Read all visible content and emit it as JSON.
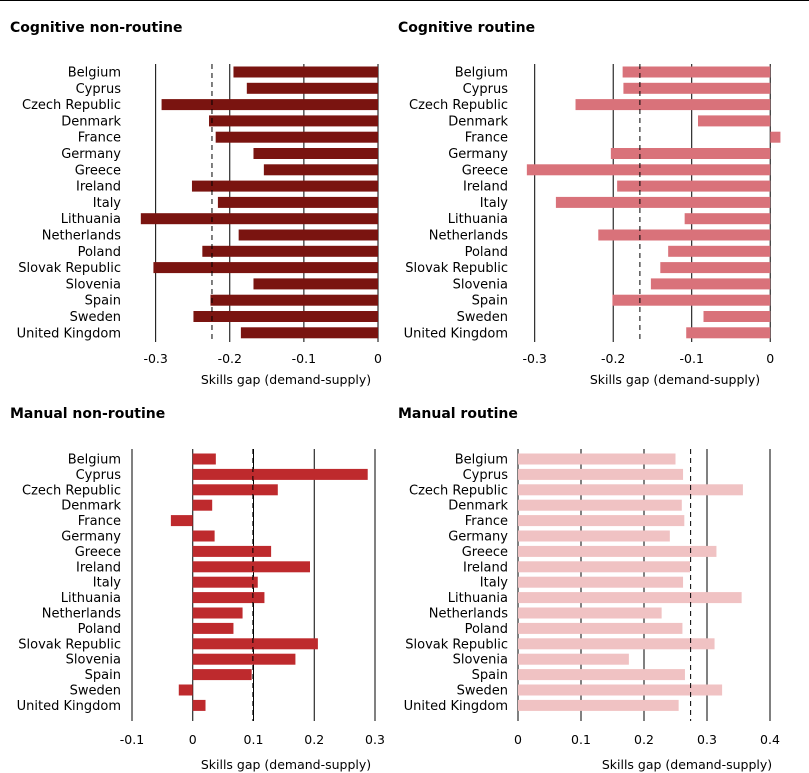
{
  "chart_data": [
    {
      "type": "bar",
      "orientation": "horizontal",
      "title": "Cognitive non-routine",
      "xlabel": "Skills gap (demand-supply)",
      "color": "#7a1410",
      "categories": [
        "Belgium",
        "Cyprus",
        "Czech Republic",
        "Denmark",
        "France",
        "Germany",
        "Greece",
        "Ireland",
        "Italy",
        "Lithuania",
        "Netherlands",
        "Poland",
        "Slovak Republic",
        "Slovenia",
        "Spain",
        "Sweden",
        "United Kingdom"
      ],
      "values": [
        -0.195,
        -0.177,
        -0.292,
        -0.228,
        -0.219,
        -0.168,
        -0.154,
        -0.251,
        -0.216,
        -0.32,
        -0.188,
        -0.237,
        -0.303,
        -0.168,
        -0.226,
        -0.249,
        -0.185
      ],
      "xlim": [
        -0.34,
        0.0
      ],
      "xticks": [
        "-0.3",
        "-0.2",
        "-0.1",
        "0"
      ],
      "xtick_values": [
        -0.3,
        -0.2,
        -0.1,
        0
      ],
      "reference_line": -0.224
    },
    {
      "type": "bar",
      "orientation": "horizontal",
      "title": "Cognitive routine",
      "xlabel": "Skills gap (demand-supply)",
      "color": "#d9727a",
      "categories": [
        "Belgium",
        "Cyprus",
        "Czech Republic",
        "Denmark",
        "France",
        "Germany",
        "Greece",
        "Ireland",
        "Italy",
        "Lithuania",
        "Netherlands",
        "Poland",
        "Slovak Republic",
        "Slovenia",
        "Spain",
        "Sweden",
        "United Kingdom"
      ],
      "values": [
        -0.188,
        -0.187,
        -0.248,
        -0.092,
        0.013,
        -0.203,
        -0.31,
        -0.195,
        -0.273,
        -0.109,
        -0.219,
        -0.13,
        -0.14,
        -0.152,
        -0.201,
        -0.085,
        -0.107
      ],
      "xlim": [
        -0.32,
        0.015
      ],
      "xticks": [
        "-0.3",
        "-0.2",
        "-0.1",
        "0"
      ],
      "xtick_values": [
        -0.3,
        -0.2,
        -0.1,
        0
      ],
      "reference_line": -0.166
    },
    {
      "type": "bar",
      "orientation": "horizontal",
      "title": "Manual non-routine",
      "xlabel": "Skills gap (demand-supply)",
      "color": "#be2a2d",
      "categories": [
        "Belgium",
        "Cyprus",
        "Czech Republic",
        "Denmark",
        "France",
        "Germany",
        "Greece",
        "Ireland",
        "Italy",
        "Lithuania",
        "Netherlands",
        "Poland",
        "Slovak Republic",
        "Slovenia",
        "Spain",
        "Sweden",
        "United Kingdom"
      ],
      "values": [
        0.038,
        0.288,
        0.14,
        0.032,
        -0.036,
        0.036,
        0.129,
        0.193,
        0.107,
        0.118,
        0.082,
        0.067,
        0.206,
        0.169,
        0.097,
        -0.023,
        0.021
      ],
      "xlim": [
        -0.1,
        0.3
      ],
      "xticks": [
        "-0.1",
        "0",
        "0.1",
        "0.2",
        "0.3"
      ],
      "xtick_values": [
        -0.1,
        0,
        0.1,
        0.2,
        0.3
      ],
      "reference_line": 0.099
    },
    {
      "type": "bar",
      "orientation": "horizontal",
      "title": "Manual routine",
      "xlabel": "Skills gap (demand-supply)",
      "color": "#f0c2c3",
      "categories": [
        "Belgium",
        "Cyprus",
        "Czech Republic",
        "Denmark",
        "France",
        "Germany",
        "Greece",
        "Ireland",
        "Italy",
        "Lithuania",
        "Netherlands",
        "Poland",
        "Slovak Republic",
        "Slovenia",
        "Spain",
        "Sweden",
        "United Kingdom"
      ],
      "values": [
        0.25,
        0.262,
        0.357,
        0.26,
        0.264,
        0.241,
        0.315,
        0.273,
        0.262,
        0.355,
        0.228,
        0.261,
        0.312,
        0.176,
        0.265,
        0.324,
        0.255
      ],
      "xlim": [
        0,
        0.4
      ],
      "xticks": [
        "0",
        "0.1",
        "0.2",
        "0.3",
        "0.4"
      ],
      "xtick_values": [
        0,
        0.1,
        0.2,
        0.3,
        0.4
      ],
      "reference_line": 0.274
    }
  ]
}
